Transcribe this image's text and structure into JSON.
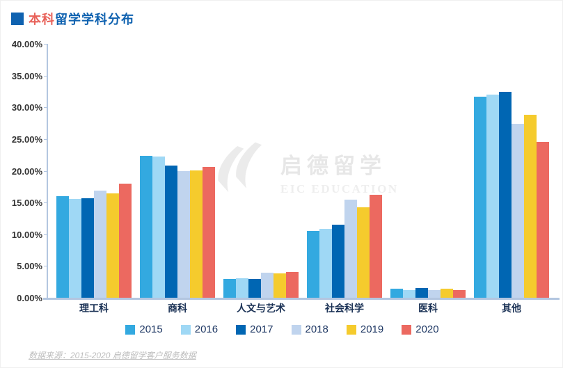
{
  "title": {
    "part1": "本科",
    "part2": "留学学科分布",
    "part1_color": "#e8625a",
    "part2_color": "#0f62b0",
    "bullet_color": "#0f62b0"
  },
  "watermark": {
    "cn": "启德留学",
    "en": "EIC EDUCATION"
  },
  "source_note": "数据来源：2015-2020 启德留学客户服务数据",
  "colors": {
    "axis_line": "#b3c6e0",
    "category_label": "#1a3155",
    "legend_text": "#1f3864",
    "y_label": "#333333"
  },
  "chart_data": {
    "type": "bar",
    "title": "本科留学学科分布",
    "categories": [
      "理工科",
      "商科",
      "人文与艺术",
      "社会科学",
      "医科",
      "其他"
    ],
    "series": [
      {
        "name": "2015",
        "color": "#33a9e0",
        "values": [
          16.0,
          22.4,
          3.0,
          10.5,
          1.4,
          31.7
        ]
      },
      {
        "name": "2016",
        "color": "#9fd8f5",
        "values": [
          15.6,
          22.2,
          3.1,
          10.8,
          1.2,
          32.0
        ]
      },
      {
        "name": "2017",
        "color": "#0066b3",
        "values": [
          15.7,
          20.8,
          3.0,
          11.5,
          1.5,
          32.4
        ]
      },
      {
        "name": "2018",
        "color": "#c0d4ee",
        "values": [
          16.9,
          19.9,
          4.0,
          15.4,
          1.2,
          27.4
        ]
      },
      {
        "name": "2019",
        "color": "#f5cb2d",
        "values": [
          16.4,
          20.1,
          3.8,
          14.3,
          1.4,
          28.8
        ]
      },
      {
        "name": "2020",
        "color": "#ec6960",
        "values": [
          18.0,
          20.6,
          4.1,
          16.2,
          1.2,
          24.6
        ]
      }
    ],
    "ylim": [
      0,
      40
    ],
    "y_ticks": [
      "40.00%",
      "35.00%",
      "30.00%",
      "25.00%",
      "20.00%",
      "15.00%",
      "10.00%",
      "5.00%",
      "0.00%"
    ],
    "value_unit": "%",
    "grid": false,
    "legend_position": "bottom"
  }
}
